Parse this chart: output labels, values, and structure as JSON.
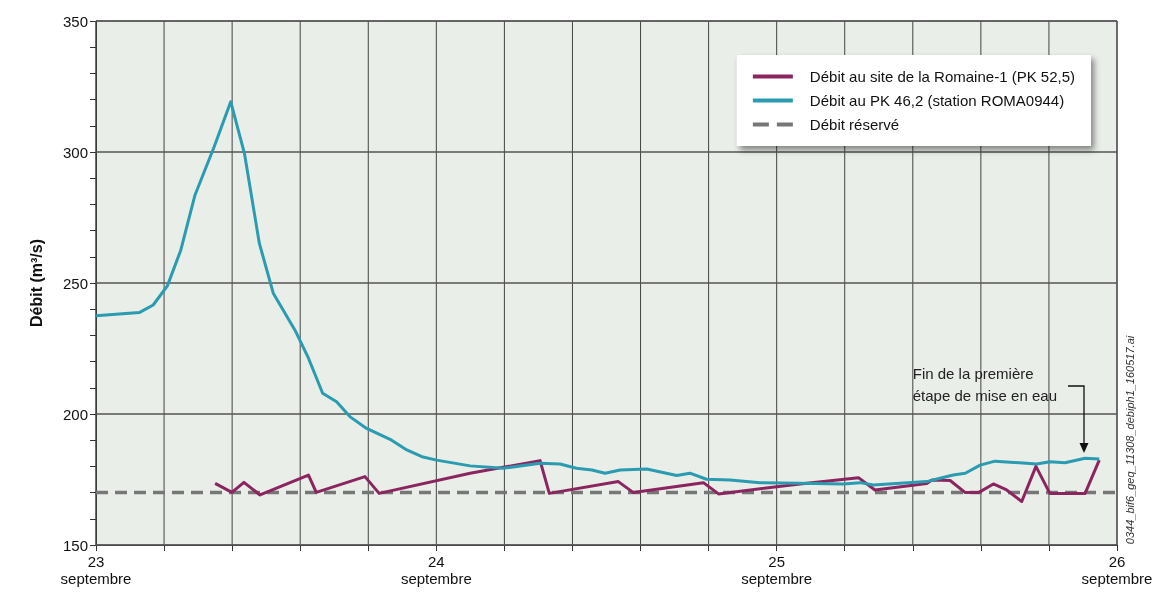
{
  "chart_data": {
    "type": "line",
    "ylabel": "Débit (m³/s)",
    "xlim": [
      "--09-23",
      "--09-26"
    ],
    "xticks": [
      {
        "value": "--09-23",
        "label": "23\nseptembre"
      },
      {
        "value": "--09-23T04:48",
        "label": null
      },
      {
        "value": "--09-23T09:36",
        "label": null
      },
      {
        "value": "--09-23T14:24",
        "label": null
      },
      {
        "value": "--09-23T19:12",
        "label": null
      },
      {
        "value": "--09-24",
        "label": "24\nseptembre"
      },
      {
        "value": "--09-24T04:48",
        "label": null
      },
      {
        "value": "--09-24T09:36",
        "label": null
      },
      {
        "value": "--09-24T14:24",
        "label": null
      },
      {
        "value": "--09-24T19:12",
        "label": null
      },
      {
        "value": "--09-25",
        "label": "25\nseptembre"
      },
      {
        "value": "--09-25T04:48",
        "label": null
      },
      {
        "value": "--09-25T09:36",
        "label": null
      },
      {
        "value": "--09-25T14:24",
        "label": null
      },
      {
        "value": "--09-25T19:12",
        "label": null
      },
      {
        "value": "--09-26",
        "label": "26\nseptembre"
      }
    ],
    "ylim": [
      150,
      350
    ],
    "yticks": [
      150,
      {
        "value": 160,
        "label": null
      },
      {
        "value": 170,
        "label": null
      },
      {
        "value": 180,
        "label": null
      },
      {
        "value": 190,
        "label": null
      },
      200,
      {
        "value": 210,
        "label": null
      },
      {
        "value": 220,
        "label": null
      },
      {
        "value": 230,
        "label": null
      },
      {
        "value": 240,
        "label": null
      },
      250,
      {
        "value": 260,
        "label": null
      },
      {
        "value": 270,
        "label": null
      },
      {
        "value": 280,
        "label": null
      },
      {
        "value": 290,
        "label": null
      },
      300,
      {
        "value": 310,
        "label": null
      },
      {
        "value": 320,
        "label": null
      },
      {
        "value": 330,
        "label": null
      },
      {
        "value": 340,
        "label": null
      },
      350
    ],
    "grid": true,
    "legend": "top right",
    "marker": "none",
    "series": [
      {
        "name": "Débit au site de la Romaine-1 (PK 52,5)",
        "color": "#8b2560",
        "x": [
          "--09-23T08:24",
          "--09-23T09:35",
          "--09-23T10:26",
          "--09-23T11:34",
          "--09-23T14:59",
          "--09-23T15:32",
          "--09-23T18:58",
          "--09-23T19:58",
          "--09-24T02:23",
          "--09-24T07:19",
          "--09-24T07:58",
          "--09-24T12:50",
          "--09-24T13:54",
          "--09-24T18:50",
          "--09-24T19:54",
          "--09-25T01:39",
          "--09-25T05:46",
          "--09-25T06:56",
          "--09-25T10:35",
          "--09-25T10:57",
          "--09-25T12:14",
          "--09-25T13:18",
          "--09-25T14:14",
          "--09-25T15:17",
          "--09-25T16:13",
          "--09-25T17:17",
          "--09-25T18:17",
          "--09-25T19:16",
          "--09-25T21:45",
          "--09-25T22:45"
        ],
        "values": [
          173.5,
          170.1,
          173.9,
          169.1,
          176.7,
          170.1,
          176.1,
          169.7,
          177.4,
          182.2,
          169.7,
          174.2,
          170,
          173.8,
          169.5,
          173.3,
          175.7,
          171,
          173.5,
          174.8,
          174.6,
          170,
          170,
          173.3,
          171,
          166.6,
          180,
          169.7,
          169.7,
          182.4
        ]
      },
      {
        "name": "Débit au PK 46,2 (station ROMA0944)",
        "color": "#2a9bb0",
        "x": [
          "--09-23T00:00",
          "--09-23T03:03",
          "--09-23T04:02",
          "--09-23T05:02",
          "--09-23T05:59",
          "--09-23T06:59",
          "--09-23T08:20",
          "--09-23T09:30",
          "--09-23T10:28",
          "--09-23T11:31",
          "--09-23T12:30",
          "--09-23T14:02",
          "--09-23T14:59",
          "--09-23T15:59",
          "--09-23T16:58",
          "--09-23T17:57",
          "--09-23T19:05",
          "--09-23T20:51",
          "--09-23T21:55",
          "--09-23T22:59",
          "--09-24T00:01",
          "--09-24T02:23",
          "--09-24T04:44",
          "--09-24T07:19",
          "--09-24T08:43",
          "--09-24T09:53",
          "--09-24T10:58",
          "--09-24T11:54",
          "--09-24T12:58",
          "--09-24T14:50",
          "--09-24T16:57",
          "--09-24T17:53",
          "--09-24T19:03",
          "--09-24T20:43",
          "--09-24T22:49",
          "--09-25T01:39",
          "--09-25T04:42",
          "--09-25T05:53",
          "--09-25T06:49",
          "--09-25T10:35",
          "--09-25T11:31",
          "--09-25T12:27",
          "--09-25T13:18",
          "--09-25T14:21",
          "--09-25T15:24",
          "--09-25T18:20",
          "--09-25T19:16",
          "--09-25T20:20",
          "--09-25T21:45",
          "--09-25T22:45"
        ],
        "values": [
          237.5,
          238.7,
          241.6,
          248.9,
          262.6,
          283.6,
          302,
          319.2,
          299.5,
          265.2,
          246.1,
          232,
          221.3,
          207.9,
          204.7,
          198.8,
          194.5,
          190,
          186.3,
          183.7,
          182.4,
          180.2,
          179.3,
          181.2,
          180.9,
          179.3,
          178.6,
          177.4,
          178.6,
          179,
          176.5,
          177.4,
          175.1,
          174.8,
          173.8,
          173.6,
          173.3,
          173.8,
          172.9,
          174.2,
          175.5,
          176.7,
          177.4,
          180.5,
          182,
          180.9,
          181.8,
          181.4,
          183.1,
          182.8
        ]
      },
      {
        "name": "Débit réservé",
        "color": "#777777",
        "line_style": "dashed",
        "x": [
          "--09-23",
          "--09-26"
        ],
        "values": [
          170,
          170
        ]
      }
    ],
    "annotations": [
      "Fin de la première\nétape de mise en eau",
      "0344_bif6_geq_11308_debiph1_160517.ai"
    ]
  }
}
